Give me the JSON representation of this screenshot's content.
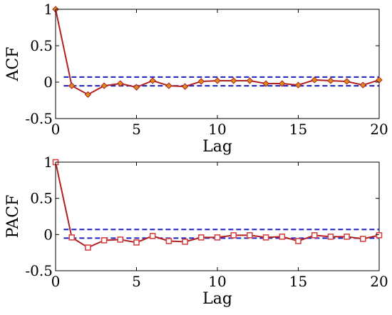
{
  "chart_data": [
    {
      "type": "line",
      "x": [
        0,
        1,
        2,
        3,
        4,
        5,
        6,
        7,
        8,
        9,
        10,
        11,
        12,
        13,
        14,
        15,
        16,
        17,
        18,
        19,
        20
      ],
      "series": [
        {
          "values": [
            1.0,
            -0.05,
            -0.17,
            -0.05,
            -0.02,
            -0.07,
            0.02,
            -0.05,
            -0.06,
            0.01,
            0.02,
            0.02,
            0.02,
            -0.02,
            -0.02,
            -0.04,
            0.03,
            0.02,
            0.01,
            -0.04,
            0.03
          ],
          "color": "#b22222",
          "marker": "diamond",
          "marker_color": "#d98c1a"
        }
      ],
      "confidence_bounds": [
        0.07,
        -0.05
      ],
      "bound_color": "#1f1fbf",
      "xlabel": "Lag",
      "ylabel": "ACF",
      "xlim": [
        0,
        20
      ],
      "ylim": [
        -0.5,
        1
      ],
      "xticks": [
        "0",
        "5",
        "10",
        "15",
        "20"
      ],
      "yticks": [
        "-0.5",
        "0",
        "0.5",
        "1"
      ],
      "grid": false
    },
    {
      "type": "line",
      "x": [
        0,
        1,
        2,
        3,
        4,
        5,
        6,
        7,
        8,
        9,
        10,
        11,
        12,
        13,
        14,
        15,
        16,
        17,
        18,
        19,
        20
      ],
      "series": [
        {
          "values": [
            1.0,
            -0.04,
            -0.18,
            -0.08,
            -0.07,
            -0.11,
            -0.02,
            -0.09,
            -0.1,
            -0.04,
            -0.04,
            -0.01,
            -0.01,
            -0.04,
            -0.03,
            -0.09,
            -0.01,
            -0.03,
            -0.03,
            -0.06,
            -0.01
          ],
          "color": "#b22222",
          "marker": "square",
          "marker_color": "#d64545"
        }
      ],
      "confidence_bounds": [
        0.07,
        -0.05
      ],
      "bound_color": "#1f1fbf",
      "xlabel": "Lag",
      "ylabel": "PACF",
      "xlim": [
        0,
        20
      ],
      "ylim": [
        -0.5,
        1
      ],
      "xticks": [
        "0",
        "5",
        "10",
        "15",
        "20"
      ],
      "yticks": [
        "-0.5",
        "0",
        "0.5",
        "1"
      ],
      "grid": false
    }
  ]
}
